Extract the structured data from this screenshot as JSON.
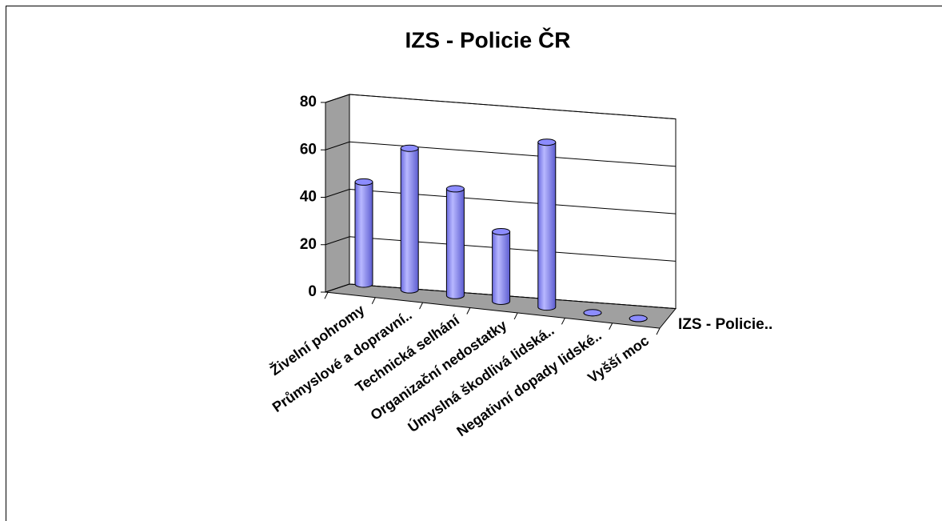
{
  "chart_data": {
    "type": "bar3d-cylinder",
    "title": "IZS - Policie ČR",
    "categories": [
      "Živelní pohromy",
      "Průmyslové a dopravní..",
      "Technická selhání",
      "Organizační nedostatky",
      "Úmyslná škodlivá lidská..",
      "Negativní dopady lidské..",
      "Vyšší moc"
    ],
    "series": [
      {
        "name": "IZS - Policie..",
        "color": "#8c8cff",
        "values": [
          44,
          61,
          46,
          30,
          71,
          0,
          0
        ]
      }
    ],
    "ylim": [
      0,
      80
    ],
    "yticks": [
      0,
      20,
      40,
      60,
      80
    ],
    "grid": true
  }
}
